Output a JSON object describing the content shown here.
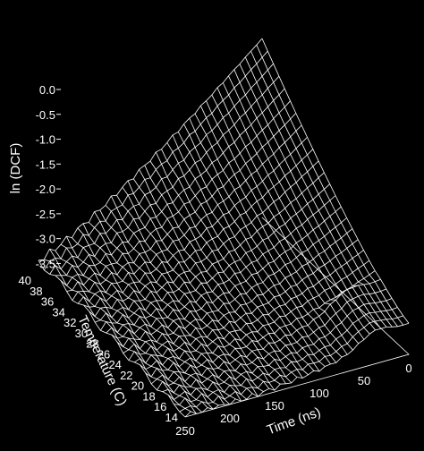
{
  "chart_data": {
    "type": "surface",
    "title": "",
    "zlabel": "ln (DCF)",
    "xlabel": "Time (ns)",
    "ylabel": "Temperature (C)",
    "time_ticks": [
      "250",
      "200",
      "150",
      "100",
      "50",
      "0"
    ],
    "temperature_ticks": [
      "40",
      "38",
      "36",
      "34",
      "32",
      "30",
      "28",
      "26",
      "24",
      "22",
      "20",
      "18",
      "16",
      "14"
    ],
    "z_ticks": [
      "0.0",
      "-0.5",
      "-1.0",
      "-1.5",
      "-2.0",
      "-2.5",
      "-3.0",
      "-3.5"
    ],
    "xlim": [
      0,
      250
    ],
    "ylim": [
      14,
      40
    ],
    "zlim": [
      -3.6,
      0
    ],
    "grid": false,
    "legend": "none",
    "surface_style": "white wireframe mesh on black background",
    "colors": {
      "background": "#000000",
      "mesh": "#ffffff",
      "text": "#ffffff"
    },
    "profile_description": {
      "peak_value_at_t0_T40": 0.0,
      "value_at_t0_T14": -3.0,
      "value_at_t250_T40": -3.2,
      "value_at_t250_T14": -3.6
    }
  }
}
